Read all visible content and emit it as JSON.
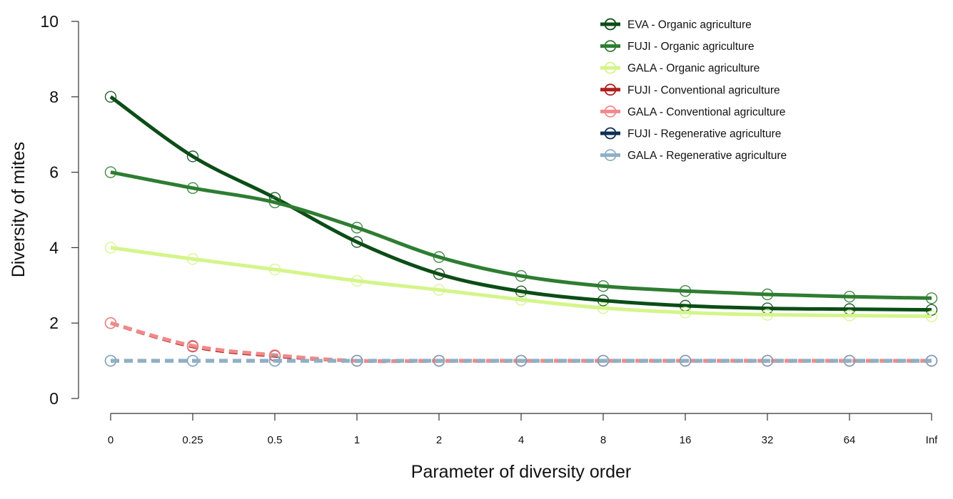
{
  "chart_data": {
    "type": "line",
    "xlabel": "Parameter of diversity order",
    "ylabel": "Diversity of mites",
    "x_tick_labels": [
      "0",
      "0.25",
      "0.5",
      "1",
      "2",
      "4",
      "8",
      "16",
      "32",
      "64",
      "Inf"
    ],
    "y_ticks": [
      0,
      2,
      4,
      6,
      8,
      10
    ],
    "ylim": [
      0,
      10
    ],
    "grid": false,
    "legend_position": "top-right",
    "series": [
      {
        "name": "EVA - Organic agriculture",
        "color": "#0b4d16",
        "dash": "solid",
        "values": [
          8.0,
          6.42,
          5.32,
          4.15,
          3.3,
          2.84,
          2.6,
          2.46,
          2.39,
          2.37,
          2.35
        ]
      },
      {
        "name": "FUJI - Organic agriculture",
        "color": "#2e7d32",
        "dash": "solid",
        "values": [
          6.0,
          5.58,
          5.2,
          4.53,
          3.75,
          3.25,
          2.98,
          2.85,
          2.76,
          2.7,
          2.66
        ]
      },
      {
        "name": "GALA - Organic agriculture",
        "color": "#d4f58a",
        "dash": "solid",
        "values": [
          4.0,
          3.7,
          3.42,
          3.12,
          2.88,
          2.62,
          2.4,
          2.28,
          2.22,
          2.2,
          2.18
        ]
      },
      {
        "name": "FUJI - Conventional agriculture",
        "color": "#b21f1f",
        "dash": "dashed",
        "values": [
          2.0,
          1.38,
          1.13,
          1.0,
          1.0,
          1.0,
          1.0,
          1.0,
          1.0,
          1.0,
          1.0
        ]
      },
      {
        "name": "GALA - Conventional agriculture",
        "color": "#f08a8a",
        "dash": "dashed",
        "values": [
          2.0,
          1.4,
          1.15,
          1.0,
          1.0,
          1.0,
          1.0,
          1.0,
          1.0,
          1.0,
          1.0
        ]
      },
      {
        "name": "FUJI - Regenerative agriculture",
        "color": "#0f2f52",
        "dash": "dashed",
        "values": [
          1.0,
          1.0,
          1.0,
          1.0,
          1.0,
          1.0,
          1.0,
          1.0,
          1.0,
          1.0,
          1.0
        ]
      },
      {
        "name": "GALA - Regenerative agriculture",
        "color": "#8fb0c6",
        "dash": "dashed",
        "values": [
          1.0,
          1.0,
          1.0,
          1.0,
          1.0,
          1.0,
          1.0,
          1.0,
          1.0,
          1.0,
          1.0
        ]
      }
    ]
  }
}
